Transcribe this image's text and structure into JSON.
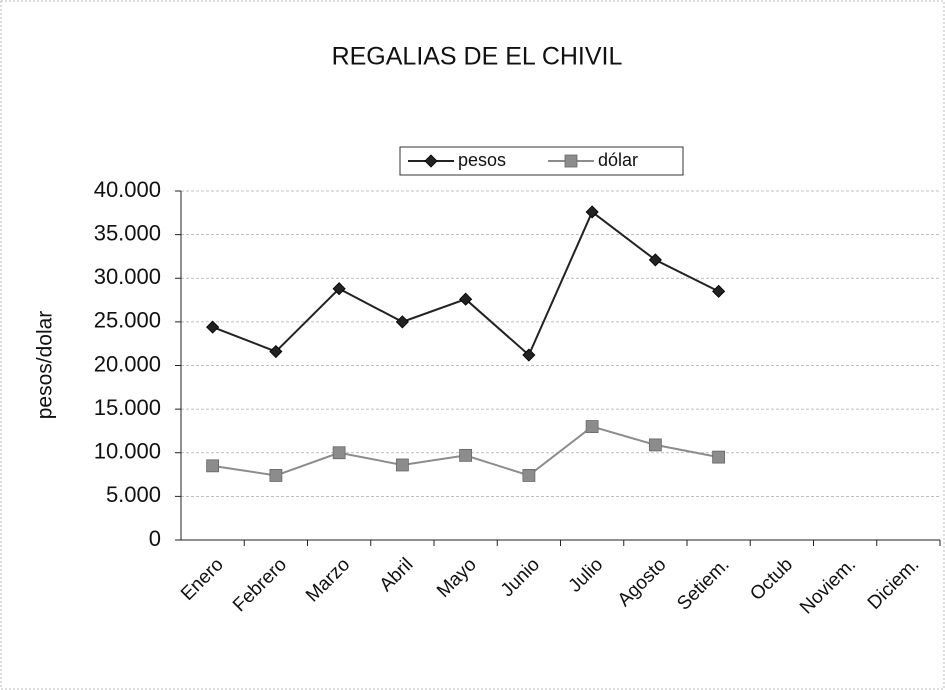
{
  "chart_data": {
    "type": "line",
    "title": "REGALIAS DE EL CHIVIL",
    "ylabel": "pesos/dolar",
    "categories": [
      "Enero",
      "Febrero",
      "Marzo",
      "Abril",
      "Mayo",
      "Junio",
      "Julio",
      "Agosto",
      "Setiem.",
      "Octub",
      "Noviem.",
      "Diciem."
    ],
    "series": [
      {
        "name": "pesos",
        "color": "#222222",
        "marker": "diamond",
        "values": [
          24400,
          21600,
          28800,
          25000,
          27600,
          21200,
          37600,
          32100,
          28500,
          null,
          null,
          null
        ]
      },
      {
        "name": "dólar",
        "color": "#8c8c8c",
        "marker": "square",
        "values": [
          8500,
          7400,
          10000,
          8600,
          9700,
          7400,
          13000,
          10900,
          9500,
          null,
          null,
          null
        ]
      }
    ],
    "ylim": [
      0,
      40000
    ],
    "yticks": [
      0,
      {
        "value": 5000,
        "label": "5.000"
      },
      {
        "value": 10000,
        "label": "10.000"
      },
      {
        "value": 15000,
        "label": "15.000"
      },
      {
        "value": 20000,
        "label": "20.000"
      },
      {
        "value": 25000,
        "label": "25.000"
      },
      {
        "value": 30000,
        "label": "30.000"
      },
      {
        "value": 35000,
        "label": "35.000"
      },
      {
        "value": 40000,
        "label": "40.000"
      }
    ],
    "grid": true,
    "legend": "top"
  }
}
